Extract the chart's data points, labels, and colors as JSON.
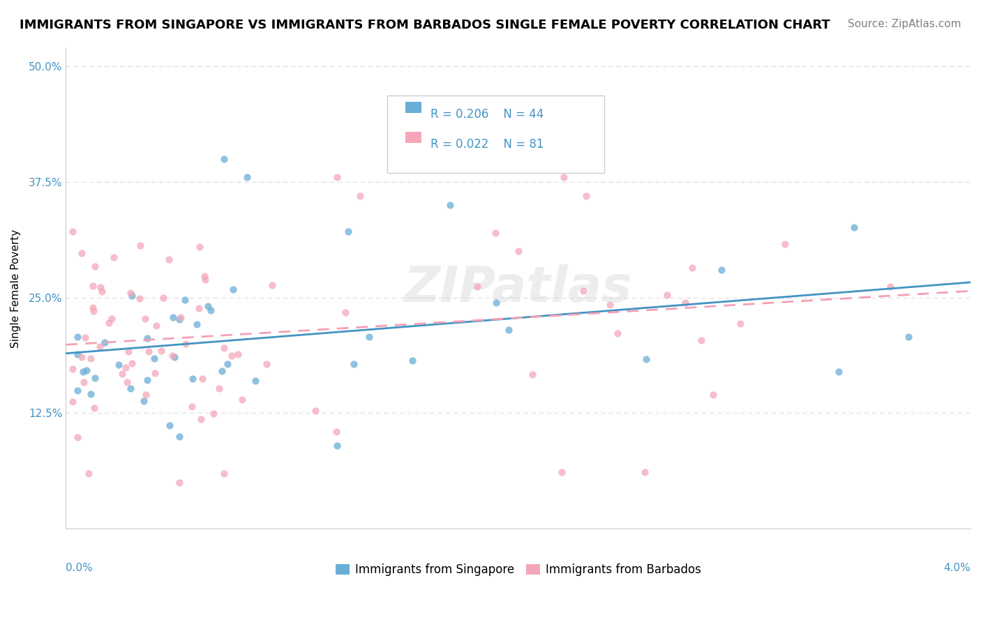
{
  "title": "IMMIGRANTS FROM SINGAPORE VS IMMIGRANTS FROM BARBADOS SINGLE FEMALE POVERTY CORRELATION CHART",
  "source": "Source: ZipAtlas.com",
  "ylabel": "Single Female Poverty",
  "yticks": [
    0.0,
    0.125,
    0.25,
    0.375,
    0.5
  ],
  "ytick_labels": [
    "",
    "12.5%",
    "25.0%",
    "37.5%",
    "50.0%"
  ],
  "xlim": [
    0.0,
    0.04
  ],
  "ylim": [
    0.0,
    0.52
  ],
  "legend_r1": "R = 0.206",
  "legend_n1": "N = 44",
  "legend_r2": "R = 0.022",
  "legend_n2": "N = 81",
  "color_singapore": "#6aaed6",
  "color_barbados": "#f4a7b9",
  "color_singapore_line": "#4393c3",
  "color_barbados_line": "#f4a0b5",
  "watermark": "ZIPatlas",
  "background_color": "#ffffff",
  "grid_color": "#dddddd",
  "title_fontsize": 13,
  "axis_label_fontsize": 11,
  "tick_fontsize": 11,
  "legend_fontsize": 12,
  "source_fontsize": 11,
  "tick_color": "#4393c3"
}
